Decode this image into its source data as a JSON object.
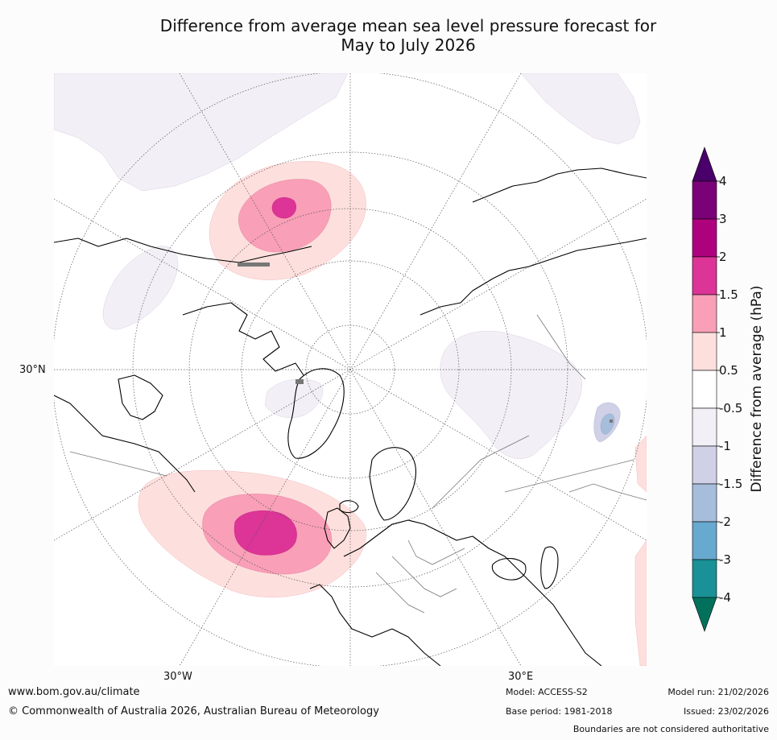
{
  "title": {
    "line1": "Difference from average mean sea level pressure forecast for",
    "line2": "May to July 2026"
  },
  "map": {
    "projection": "north-polar-stereographic",
    "region": "Northern Hemisphere - Atlantic/Europe sector",
    "axis_labels": {
      "lat": "30°N",
      "lon_west": "30°W",
      "lon_east": "30°E"
    },
    "anomaly_regions": [
      {
        "region": "Bering Sea / Alaska",
        "anomaly_hPa": "0.5 to 1.5",
        "peak_hPa": "2 to 3"
      },
      {
        "region": "North Atlantic west of Europe",
        "anomaly_hPa": "0.5 to 1.5",
        "peak_hPa": "2 to 3"
      },
      {
        "region": "Central Asia",
        "anomaly_hPa": "-0.5 to -1",
        "peak_hPa": "-1.5 to -2"
      },
      {
        "region": "North-east Pacific / Arctic Canada",
        "anomaly_hPa": "-0.5 to -1"
      }
    ]
  },
  "colorbar": {
    "label": "Difference from average (hPa)",
    "tick_labels": [
      "-4",
      "-3",
      "-2",
      "-1.5",
      "-1",
      "-0.5",
      "0.5",
      "1",
      "1.5",
      "2",
      "3",
      "4"
    ],
    "bins": [
      {
        "from": -4,
        "to": -3,
        "color": "#1a9196"
      },
      {
        "from": -3,
        "to": -2,
        "color": "#67a9cf"
      },
      {
        "from": -2,
        "to": -1.5,
        "color": "#a6bddb"
      },
      {
        "from": -1.5,
        "to": -1,
        "color": "#d0d1e6"
      },
      {
        "from": -1,
        "to": -0.5,
        "color": "#f3eff6"
      },
      {
        "from": -0.5,
        "to": 0.5,
        "color": "#ffffff"
      },
      {
        "from": 0.5,
        "to": 1,
        "color": "#fde0dd"
      },
      {
        "from": 1,
        "to": 1.5,
        "color": "#f99fb8"
      },
      {
        "from": 1.5,
        "to": 2,
        "color": "#dd3497"
      },
      {
        "from": 2,
        "to": 3,
        "color": "#ae017e"
      },
      {
        "from": 3,
        "to": 4,
        "color": "#7a0177"
      }
    ],
    "extend_low_color": "#02715c",
    "extend_high_color": "#49006a"
  },
  "footer": {
    "website": "www.bom.gov.au/climate",
    "copyright": "© Commonwealth of Australia 2026, Australian Bureau of Meteorology",
    "model": "Model: ACCESS-S2",
    "base_period": "Base period: 1981-2018",
    "model_run": "Model run: 21/02/2026",
    "issued": "Issued: 23/02/2026",
    "disclaimer": "Boundaries are not considered authoritative"
  }
}
